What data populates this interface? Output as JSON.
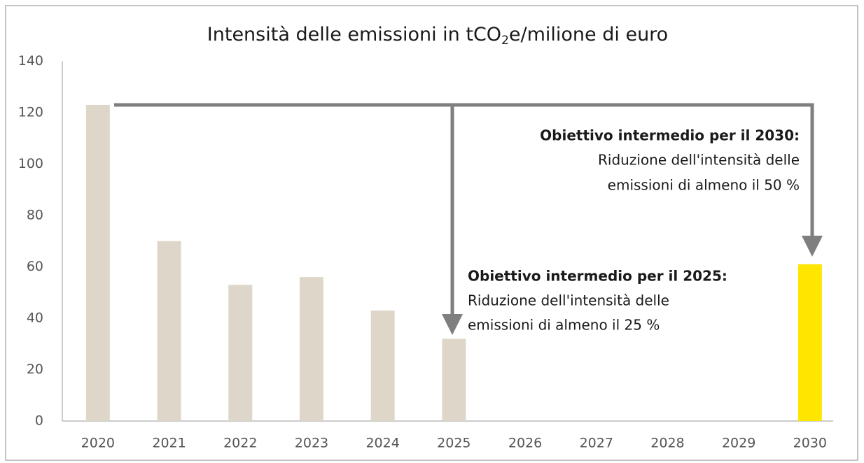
{
  "chart_data": {
    "type": "bar",
    "title": [
      "Intensità delle emissioni in tCO",
      "2",
      "e/milione di euro"
    ],
    "categories": [
      "2020",
      "2021",
      "2022",
      "2023",
      "2024",
      "2025",
      "2026",
      "2027",
      "2028",
      "2029",
      "2030"
    ],
    "values": [
      123,
      70,
      53,
      56,
      43,
      32,
      null,
      null,
      null,
      null,
      61
    ],
    "colors": [
      "#ded6c9",
      "#ded6c9",
      "#ded6c9",
      "#ded6c9",
      "#ded6c9",
      "#ded6c9",
      "#ded6c9",
      "#ded6c9",
      "#ded6c9",
      "#ded6c9",
      "#ffe600"
    ],
    "ylim": [
      0,
      140
    ],
    "yticks": [
      0,
      20,
      40,
      60,
      80,
      100,
      120,
      140
    ],
    "grid": false,
    "annotations": [
      {
        "title": "Obiettivo intermedio per il 2030:",
        "lines": [
          "Riduzione dell'intensità delle",
          "emissioni di almeno il 50 %"
        ]
      },
      {
        "title": "Obiettivo intermedio per il 2025:",
        "lines": [
          "Riduzione dell'intensità delle",
          "emissioni di almeno il 25 %"
        ]
      }
    ]
  }
}
